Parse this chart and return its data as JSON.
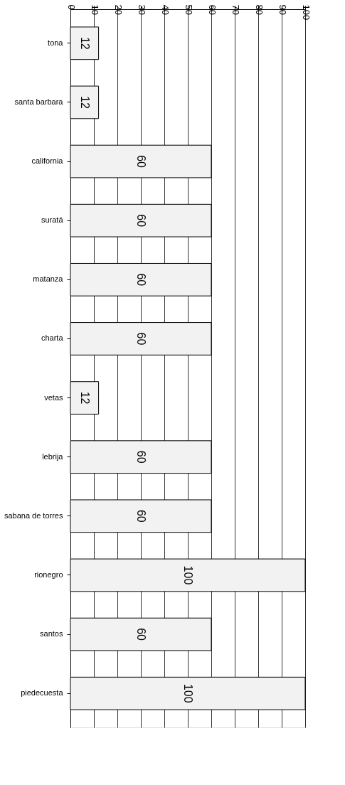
{
  "chart_data": {
    "type": "bar",
    "orientation": "horizontal",
    "categories": [
      "tona",
      "santa barbara",
      "california",
      "suratá",
      "matanza",
      "charta",
      "vetas",
      "lebrija",
      "sabana de torres",
      "rionegro",
      "santos",
      "piedecuesta"
    ],
    "values": [
      12,
      12,
      60,
      60,
      60,
      60,
      12,
      60,
      60,
      100,
      60,
      100
    ],
    "color": "#f2f2f2",
    "xlim": [
      0,
      100
    ],
    "xticks": [
      0,
      10,
      20,
      30,
      40,
      50,
      60,
      70,
      80,
      90,
      100
    ],
    "grid": "x",
    "data_labels": true
  }
}
